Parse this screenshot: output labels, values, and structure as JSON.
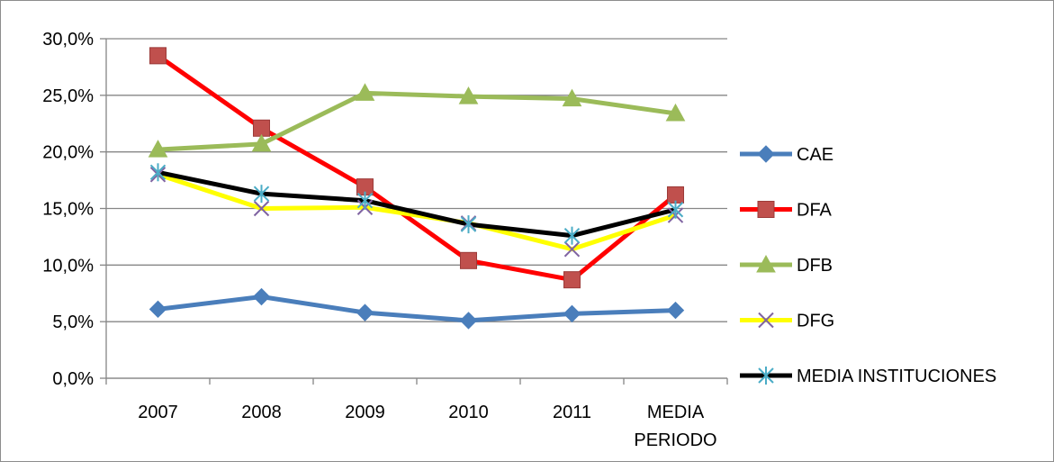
{
  "chart_data": {
    "type": "line",
    "title": "",
    "xlabel": "",
    "ylabel": "",
    "categories": [
      [
        "2007"
      ],
      [
        "2008"
      ],
      [
        "2009"
      ],
      [
        "2010"
      ],
      [
        "2011"
      ],
      [
        "MEDIA",
        "PERIODO"
      ]
    ],
    "ylim": [
      0,
      30
    ],
    "yticks": [
      0,
      5,
      10,
      15,
      20,
      25,
      30
    ],
    "ytick_labels": [
      "0,0%",
      "5,0%",
      "10,0%",
      "15,0%",
      "20,0%",
      "25,0%",
      "30,0%"
    ],
    "grid": true,
    "legend_position": "right",
    "series": [
      {
        "name": "CAE",
        "values": [
          6.1,
          7.2,
          5.8,
          5.1,
          5.7,
          6.0
        ],
        "color": "#4a7ebb",
        "marker": "diamond"
      },
      {
        "name": "DFA",
        "values": [
          28.5,
          22.1,
          16.9,
          10.4,
          8.7,
          16.2
        ],
        "color": "#ff0000",
        "marker": "square",
        "marker_color": "#c0504d"
      },
      {
        "name": "DFB",
        "values": [
          20.2,
          20.7,
          25.2,
          24.9,
          24.7,
          23.4
        ],
        "color": "#9bbb59",
        "marker": "triangle"
      },
      {
        "name": "DFG",
        "values": [
          18.0,
          15.0,
          15.1,
          13.7,
          11.4,
          14.4
        ],
        "color": "#ffff00",
        "marker": "x",
        "marker_color": "#8064a2"
      },
      {
        "name": "MEDIA INSTITUCIONES",
        "values": [
          18.2,
          16.3,
          15.7,
          13.6,
          12.6,
          14.9
        ],
        "color": "#000000",
        "marker": "star",
        "marker_color": "#4bacc6"
      }
    ]
  }
}
